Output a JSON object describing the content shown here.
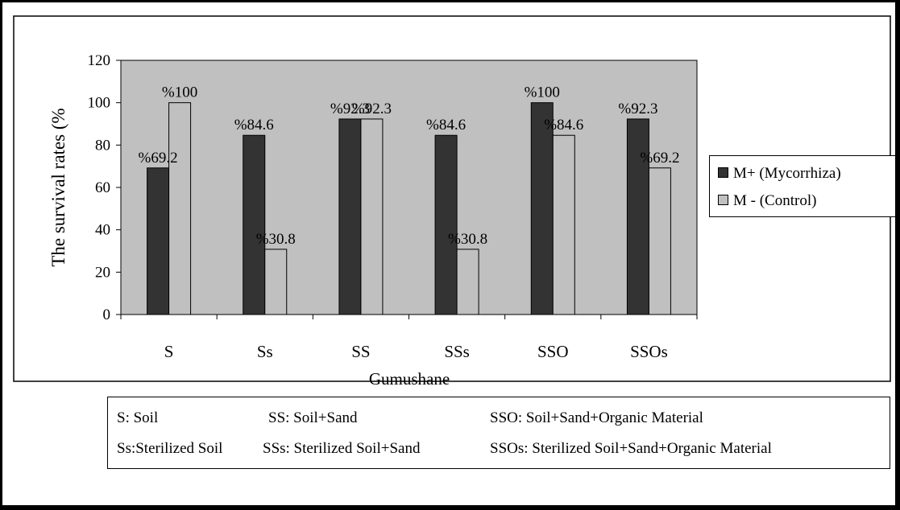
{
  "chart_data": {
    "type": "bar",
    "categories": [
      "S",
      "Ss",
      "SS",
      "SSs",
      "SSO",
      "SSOs"
    ],
    "series": [
      {
        "name": "M+ (Mycorrhiza)",
        "values": [
          69.2,
          84.6,
          92.3,
          84.6,
          100,
          92.3
        ],
        "labels": [
          "%69.2",
          "%84.6",
          "%92.3",
          "%84.6",
          "%100",
          "%92.3"
        ],
        "color": "#333333"
      },
      {
        "name": "M - (Control)",
        "values": [
          100,
          30.8,
          92.3,
          30.8,
          84.6,
          69.2
        ],
        "labels": [
          "%100",
          "%30.8",
          "%92.3",
          "%30.8",
          "%84.6",
          "%69.2"
        ],
        "color": "#c0c0c0"
      }
    ],
    "xlabel": "Gumushane",
    "ylabel": "The survival rates (%",
    "ylim": [
      0,
      120
    ],
    "yticks": [
      "0",
      "20",
      "40",
      "60",
      "80",
      "100",
      "120"
    ],
    "grid": false,
    "legend_position": "right"
  },
  "abbreviations": [
    [
      "S: Soil",
      "SS: Soil+Sand",
      "SSO: Soil+Sand+Organic Material"
    ],
    [
      "Ss:Sterilized Soil",
      "SSs: Sterilized Soil+Sand",
      "SSOs: Sterilized Soil+Sand+Organic Material"
    ]
  ]
}
